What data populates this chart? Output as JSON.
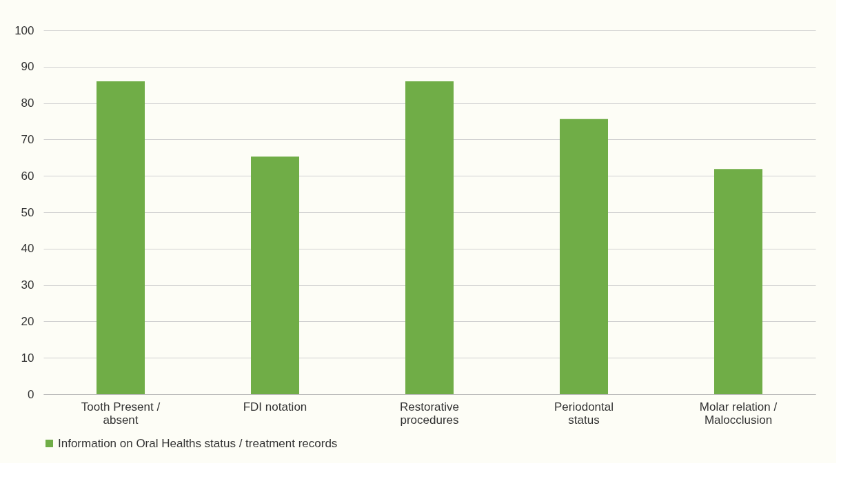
{
  "chart_data": {
    "type": "bar",
    "categories": [
      "Tooth Present / absent",
      "FDI notation",
      "Restorative procedures",
      "Periodontal status",
      "Molar relation / Malocclusion"
    ],
    "series": [
      {
        "name": "Information on Oral Healths status / treatment records",
        "color": "#70ad47",
        "values": [
          86,
          65.3,
          86,
          75.6,
          61.9
        ]
      }
    ],
    "ylim": [
      0,
      100
    ],
    "yticks": [
      0,
      10,
      20,
      30,
      40,
      50,
      60,
      70,
      80,
      90,
      100
    ],
    "grid": "y",
    "legend": "bottom"
  }
}
